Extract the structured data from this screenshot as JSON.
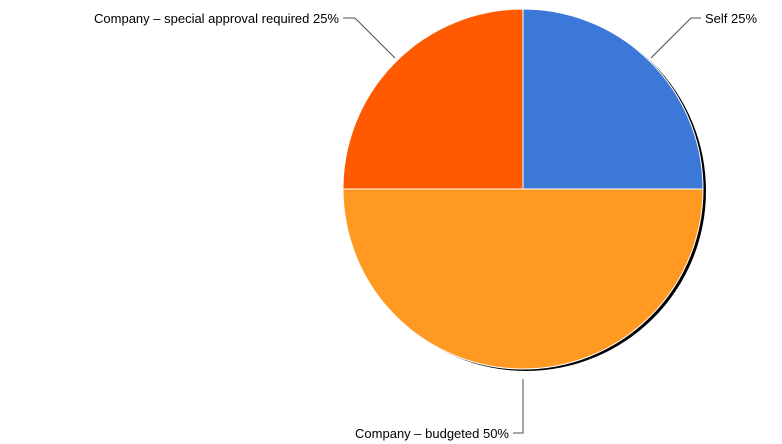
{
  "chart_data": {
    "type": "pie",
    "title": "",
    "slices": [
      {
        "label": "Self 25%",
        "value": 25,
        "color": "#3c78d8"
      },
      {
        "label": "Company – budgeted 50%",
        "value": 50,
        "color": "#ff9922"
      },
      {
        "label": "Company – special approval required 25%",
        "value": 25,
        "color": "#ff5a00"
      }
    ],
    "legend": "none",
    "labels_position": "outside-with-leader-lines",
    "start_angle": "12 o'clock",
    "direction": "clockwise"
  }
}
